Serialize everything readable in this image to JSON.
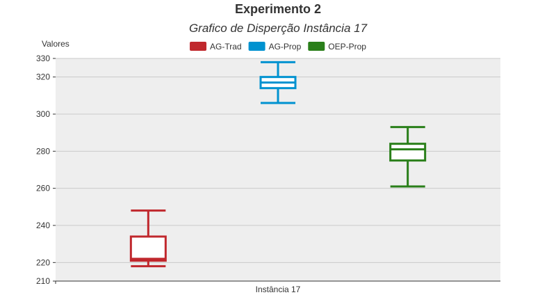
{
  "chart_data": {
    "type": "boxplot",
    "title": "Experimento 2",
    "subtitle": "Grafico de Disperção Instância 17",
    "ylabel": "Valores",
    "xlabel": "",
    "categories": [
      "Instância 17"
    ],
    "ylim": [
      210,
      330
    ],
    "yticks": [
      210,
      220,
      240,
      260,
      280,
      300,
      320,
      330
    ],
    "grid": true,
    "legend_position": "top",
    "series": [
      {
        "name": "AG-Trad",
        "color": "#c0282d",
        "min": 218,
        "q1": 221,
        "median": 222,
        "q3": 234,
        "max": 248
      },
      {
        "name": "AG-Prop",
        "color": "#0092d0",
        "min": 306,
        "q1": 314,
        "median": 317,
        "q3": 320,
        "max": 328
      },
      {
        "name": "OEP-Prop",
        "color": "#2a7f1a",
        "min": 261,
        "q1": 275,
        "median": 281,
        "q3": 284,
        "max": 293
      }
    ]
  }
}
